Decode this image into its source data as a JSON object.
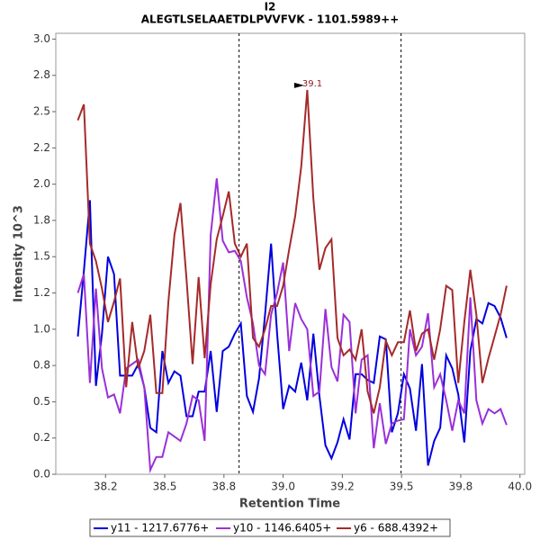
{
  "chart_data": {
    "type": "line",
    "title": "I2",
    "subtitle": "ALEGTLSELAAETDLPVVFVK - 1101.5989++",
    "x_label": "Retention Time",
    "y_label": "Intensity 10^3",
    "xlim": [
      38.04,
      40.02
    ],
    "ylim": [
      0,
      3.04
    ],
    "xticks": [
      {
        "value": 38.25,
        "label": "38.2"
      },
      38.5,
      {
        "value": 38.75,
        "label": "38.8"
      },
      {
        "value": 39,
        "label": "39.0"
      },
      {
        "value": 39.25,
        "label": "39.2"
      },
      39.5,
      {
        "value": 39.75,
        "label": "39.8"
      },
      {
        "value": 40,
        "label": "40.0"
      }
    ],
    "yticks": [
      {
        "value": 0,
        "label": "0.0"
      },
      {
        "value": 0.25,
        "label": "0.2"
      },
      0.5,
      {
        "value": 0.75,
        "label": "0.8"
      },
      {
        "value": 1,
        "label": "1.0"
      },
      {
        "value": 1.25,
        "label": "1.2"
      },
      1.5,
      {
        "value": 1.75,
        "label": "1.8"
      },
      {
        "value": 2,
        "label": "2.0"
      },
      {
        "value": 2.25,
        "label": "2.2"
      },
      2.5,
      {
        "value": 2.75,
        "label": "2.8"
      },
      {
        "value": 3,
        "label": "3.0"
      }
    ],
    "vlines": [
      38.814,
      39.498
    ],
    "annotation": {
      "text": "39.1",
      "x": 39.1,
      "y": 2.65
    },
    "legend": "bottom",
    "x": [
      38.133,
      38.1585,
      38.184,
      38.2095,
      38.235,
      38.2605,
      38.286,
      38.3115,
      38.337,
      38.3625,
      38.388,
      38.4135,
      38.439,
      38.4645,
      38.49,
      38.5155,
      38.541,
      38.5665,
      38.592,
      38.6175,
      38.643,
      38.6685,
      38.694,
      38.7195,
      38.745,
      38.7705,
      38.796,
      38.8215,
      38.847,
      38.8725,
      38.898,
      38.9235,
      38.949,
      38.9745,
      39.0,
      39.0255,
      39.051,
      39.0765,
      39.102,
      39.1275,
      39.153,
      39.1785,
      39.204,
      39.2295,
      39.255,
      39.2805,
      39.306,
      39.3315,
      39.357,
      39.3825,
      39.408,
      39.4335,
      39.459,
      39.4845,
      39.51,
      39.5355,
      39.561,
      39.5865,
      39.612,
      39.6375,
      39.663,
      39.6885,
      39.714,
      39.7395,
      39.765,
      39.7905,
      39.816,
      39.8415,
      39.867,
      39.8925,
      39.918,
      39.9435
    ],
    "series": [
      {
        "name": "y11 - 1217.6776+",
        "color": "#0000e0",
        "values": [
          0.95,
          1.4,
          1.89,
          0.61,
          0.97,
          1.5,
          1.38,
          0.68,
          0.68,
          0.68,
          0.76,
          0.6,
          0.32,
          0.29,
          0.85,
          0.63,
          0.71,
          0.68,
          0.4,
          0.4,
          0.57,
          0.57,
          0.85,
          0.43,
          0.85,
          0.88,
          0.97,
          1.04,
          0.54,
          0.43,
          0.66,
          1.1,
          1.59,
          0.97,
          0.45,
          0.61,
          0.57,
          0.77,
          0.51,
          0.97,
          0.54,
          0.2,
          0.11,
          0.22,
          0.38,
          0.24,
          0.69,
          0.69,
          0.65,
          0.63,
          0.95,
          0.93,
          0.29,
          0.42,
          0.69,
          0.59,
          0.3,
          0.76,
          0.06,
          0.23,
          0.32,
          0.82,
          0.73,
          0.55,
          0.22,
          0.85,
          1.07,
          1.04,
          1.18,
          1.16,
          1.08,
          0.94
        ]
      },
      {
        "name": "y10 - 1146.6405+",
        "color": "#9a30d8",
        "values": [
          1.25,
          1.38,
          0.63,
          1.28,
          0.73,
          0.53,
          0.55,
          0.42,
          0.73,
          0.76,
          0.79,
          0.6,
          0.03,
          0.12,
          0.12,
          0.29,
          0.26,
          0.23,
          0.35,
          0.54,
          0.51,
          0.23,
          1.65,
          2.04,
          1.61,
          1.53,
          1.54,
          1.47,
          1.22,
          1.04,
          0.75,
          0.69,
          1.1,
          1.25,
          1.46,
          0.85,
          1.18,
          1.07,
          1.0,
          0.54,
          0.57,
          1.14,
          0.74,
          0.64,
          1.1,
          1.05,
          0.42,
          0.79,
          0.82,
          0.18,
          0.49,
          0.21,
          0.35,
          0.37,
          0.38,
          1.0,
          0.82,
          0.88,
          1.11,
          0.6,
          0.69,
          0.51,
          0.3,
          0.51,
          0.42,
          1.22,
          0.51,
          0.35,
          0.45,
          0.42,
          0.45,
          0.34
        ]
      },
      {
        "name": "y6 - 688.4392+",
        "color": "#a52a2a",
        "values": [
          2.44,
          2.55,
          1.59,
          1.47,
          1.28,
          1.05,
          1.19,
          1.35,
          0.6,
          1.05,
          0.73,
          0.85,
          1.1,
          0.56,
          0.56,
          1.19,
          1.65,
          1.87,
          1.35,
          0.76,
          1.36,
          0.8,
          1.31,
          1.62,
          1.78,
          1.95,
          1.59,
          1.5,
          1.59,
          0.94,
          0.88,
          1.0,
          1.16,
          1.16,
          1.3,
          1.55,
          1.78,
          2.12,
          2.65,
          1.9,
          1.41,
          1.56,
          1.62,
          0.94,
          0.82,
          0.86,
          0.79,
          1.0,
          0.57,
          0.42,
          0.6,
          0.92,
          0.82,
          0.91,
          0.91,
          1.13,
          0.85,
          0.97,
          1.0,
          0.79,
          1.0,
          1.3,
          1.27,
          0.63,
          1.05,
          1.41,
          1.1,
          0.63,
          0.8,
          0.95,
          1.1,
          1.3
        ]
      }
    ]
  }
}
